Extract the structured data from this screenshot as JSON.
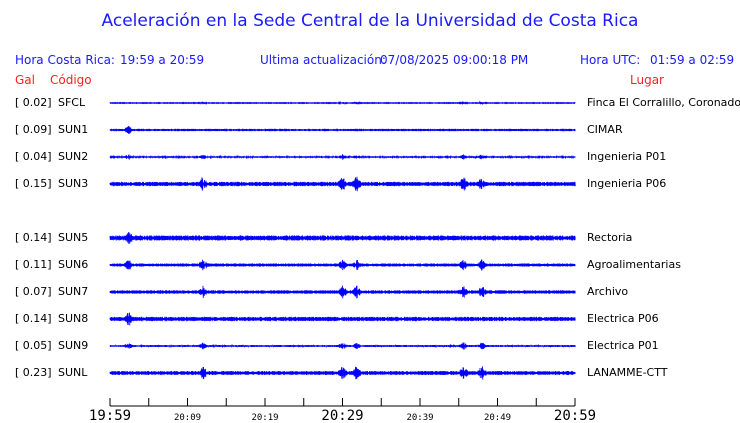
{
  "title": "Aceleración en la Sede Central de la Universidad de Costa Rica",
  "header": {
    "local_label": "Hora Costa Rica:",
    "local_range": "19:59 a 20:59",
    "update_label": "Ultima actualización:",
    "update_value": "07/08/2025 09:00:18 PM",
    "utc_label": "Hora UTC:",
    "utc_range": "01:59 a 02:59"
  },
  "columns": {
    "gal": "Gal",
    "code": "Código",
    "place": "Lugar"
  },
  "colors": {
    "trace": "#0000ff",
    "title": "#1a1aff",
    "column_headers": "#ff2020"
  },
  "chart_data": {
    "type": "line",
    "title": "Aceleración en la Sede Central de la Universidad de Costa Rica",
    "x_ticks_major": [
      "19:59",
      "20:29",
      "20:59"
    ],
    "x_ticks_minor": [
      "20:09",
      "20:19",
      "20:39",
      "20:49"
    ],
    "xlim": [
      "19:59",
      "20:59"
    ],
    "tick_interval_minutes": 5,
    "stations": [
      {
        "gal": "[   0.02]",
        "code": "SFCL",
        "place": "Finca El Corralillo, Coronado"
      },
      {
        "gal": "[   0.09]",
        "code": "SUN1",
        "place": "CIMAR"
      },
      {
        "gal": "[   0.04]",
        "code": "SUN2",
        "place": "Ingenieria P01"
      },
      {
        "gal": "[   0.15]",
        "code": "SUN3",
        "place": "Ingenieria P06"
      },
      {
        "gal": "[   0.14]",
        "code": "SUN5",
        "place": "Rectoria"
      },
      {
        "gal": "[   0.11]",
        "code": "SUN6",
        "place": "Agroalimentarias"
      },
      {
        "gal": "[   0.07]",
        "code": "SUN7",
        "place": "Archivo"
      },
      {
        "gal": "[   0.14]",
        "code": "SUN8",
        "place": "Electrica P06"
      },
      {
        "gal": "[   0.05]",
        "code": "SUN9",
        "place": "Electrica P01"
      },
      {
        "gal": "[   0.23]",
        "code": "SUNL",
        "place": "LANAMME-CTT"
      }
    ]
  }
}
